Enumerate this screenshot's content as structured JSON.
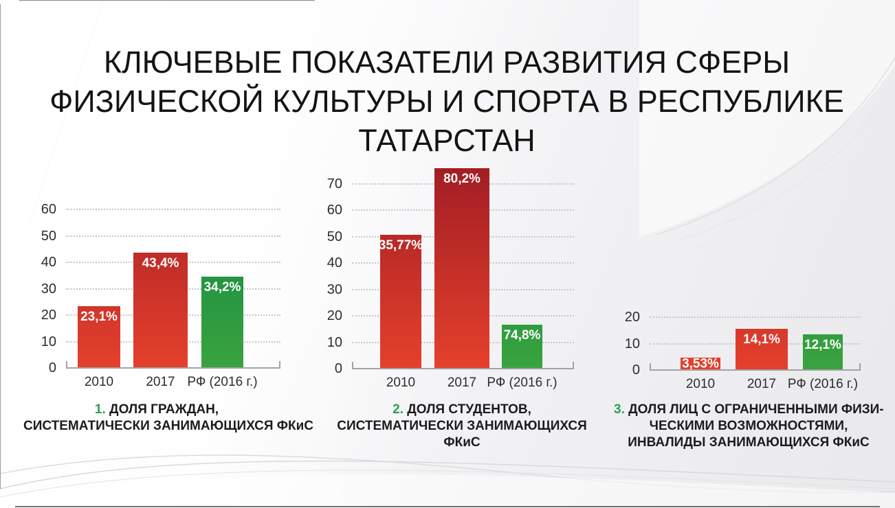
{
  "slide": {
    "title": "КЛЮЧЕВЫЕ ПОКАЗАТЕЛИ РАЗВИТИЯ СФЕРЫ ФИЗИЧЕСКОЙ КУЛЬТУРЫ И СПОРТА В РЕСПУБЛИКЕ ТАТАРСТАН",
    "title_lines": [
      "КЛЮЧЕВЫЕ ПОКАЗАТЕЛИ РАЗВИТИЯ СФЕРЫ",
      "ФИЗИЧЕСКОЙ КУЛЬТУРЫ И СПОРТА В РЕСПУБЛИКЕ",
      "ТАТАРСТАН"
    ]
  },
  "colors": {
    "bar_red_top": "#a01d24",
    "bar_red_bottom": "#e5402c",
    "bar_green_top": "#148b45",
    "bar_green_bottom": "#3aa33e",
    "caption_number_green": "#2aa052",
    "value_label_white": "#ffffff",
    "axis_text": "#2d2d30",
    "gridline_gray": "#c6c6cb"
  },
  "chart_data": [
    {
      "type": "bar",
      "title": "1. ДОЛЯ ГРАЖДАН, СИСТЕМАТИЧЕСКИ ЗАНИМАЮЩИХСЯ ФКиС",
      "caption_num": "1.",
      "caption_lines": [
        "ДОЛЯ ГРАЖДАН,",
        "СИСТЕМАТИЧЕСКИ ЗАНИМАЮЩИХСЯ ФКиС"
      ],
      "categories": [
        "2010",
        "2017",
        "РФ (2016 г.)"
      ],
      "values": [
        23.1,
        43.4,
        34.2
      ],
      "value_labels": [
        "23,1%",
        "43,4%",
        "34,2%"
      ],
      "bar_colors": [
        "red",
        "red",
        "green"
      ],
      "drawn_units": [
        23.1,
        43.4,
        34.2
      ],
      "yticks": [
        0,
        10,
        20,
        30,
        40,
        50,
        60
      ],
      "ylim": [
        0,
        60
      ],
      "grid": "horizontal-dotted",
      "legend": "none"
    },
    {
      "type": "bar",
      "title": "2. ДОЛЯ СТУДЕНТОВ, СИСТЕМАТИЧЕСКИ ЗАНИМАЮЩИХСЯ ФКиС",
      "caption_num": "2.",
      "caption_lines": [
        "ДОЛЯ СТУДЕНТОВ,",
        "СИСТЕМАТИЧЕСКИ ЗАНИМАЮЩИХСЯ",
        "ФКиС"
      ],
      "categories": [
        "2010",
        "2017",
        "РФ (2016 г.)"
      ],
      "values": [
        35.77,
        80.2,
        74.8
      ],
      "value_labels": [
        "35,77%",
        "80,2%",
        "74,8%"
      ],
      "bar_colors": [
        "red",
        "red",
        "green"
      ],
      "drawn_units": [
        50.5,
        75.5,
        16.3
      ],
      "yticks": [
        0,
        10,
        20,
        30,
        40,
        50,
        60,
        70
      ],
      "ylim": [
        0,
        70
      ],
      "grid": "horizontal-dotted",
      "legend": "none"
    },
    {
      "type": "bar",
      "title": "3. ДОЛЯ ЛИЦ С ОГРАНИЧЕННЫМИ ФИЗИЧЕСКИМИ ВОЗМОЖНОСТЯМИ, ИНВАЛИДЫ ЗАНИМАЮЩИХСЯ ФКиС",
      "caption_num": "3.",
      "caption_lines": [
        "ДОЛЯ ЛИЦ С ОГРАНИЧЕННЫМИ ФИЗИ-",
        "ЧЕСКИМИ ВОЗМОЖНОСТЯМИ,",
        "ИНВАЛИДЫ ЗАНИМАЮЩИХСЯ ФКиС"
      ],
      "categories": [
        "2010",
        "2017",
        "РФ (2016 г.)"
      ],
      "values": [
        3.53,
        14.1,
        12.1
      ],
      "value_labels": [
        "3,53%",
        "14,1%",
        "12,1%"
      ],
      "bar_colors": [
        "red",
        "red",
        "green"
      ],
      "drawn_units": [
        4.3,
        15.2,
        13.2
      ],
      "yticks": [
        0,
        10,
        20
      ],
      "ylim": [
        0,
        20
      ],
      "grid": "horizontal-dotted",
      "legend": "none"
    }
  ]
}
